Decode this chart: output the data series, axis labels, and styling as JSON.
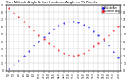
{
  "title": "Sun Altitude Angle & Sun Incidence Angle on PV Panels",
  "ylim": [
    0,
    90
  ],
  "legend_labels": [
    "Altitude Ang",
    "Incidence Ang"
  ],
  "legend_colors": [
    "#0000ff",
    "#ff0000"
  ],
  "background_color": "#ffffff",
  "grid_color": "#aaaaaa",
  "title_fontsize": 3.0,
  "tick_fontsize": 2.2,
  "legend_fontsize": 2.0,
  "x_tick_labels": [
    "7:0",
    "7:3",
    "8:0",
    "8:3",
    "9:0",
    "9:3",
    "10:0",
    "10:3",
    "11:0",
    "11:3",
    "12:0",
    "12:3",
    "13:0",
    "13:3",
    "14:0",
    "14:3",
    "15:0",
    "15:3",
    "16:0",
    "16:3",
    "17:0",
    "17:3",
    "18:0"
  ],
  "altitude_x": [
    0,
    1,
    2,
    3,
    4,
    5,
    6,
    7,
    8,
    9,
    10,
    11,
    12,
    13,
    14,
    15,
    16,
    17,
    18,
    19,
    20,
    21,
    22
  ],
  "altitude_y": [
    3,
    8,
    14,
    20,
    27,
    34,
    40,
    46,
    52,
    57,
    62,
    65,
    67,
    67,
    66,
    63,
    59,
    54,
    48,
    41,
    34,
    26,
    18
  ],
  "incidence_x": [
    0,
    1,
    2,
    3,
    4,
    5,
    6,
    7,
    8,
    9,
    10,
    11,
    12,
    13,
    14,
    15,
    16,
    17,
    18,
    19,
    20,
    21,
    22
  ],
  "incidence_y": [
    85,
    79,
    73,
    67,
    61,
    55,
    49,
    43,
    38,
    33,
    28,
    24,
    21,
    20,
    21,
    24,
    28,
    33,
    38,
    43,
    49,
    55,
    61
  ],
  "yticks": [
    0,
    10,
    20,
    30,
    40,
    50,
    60,
    70,
    80,
    90
  ]
}
